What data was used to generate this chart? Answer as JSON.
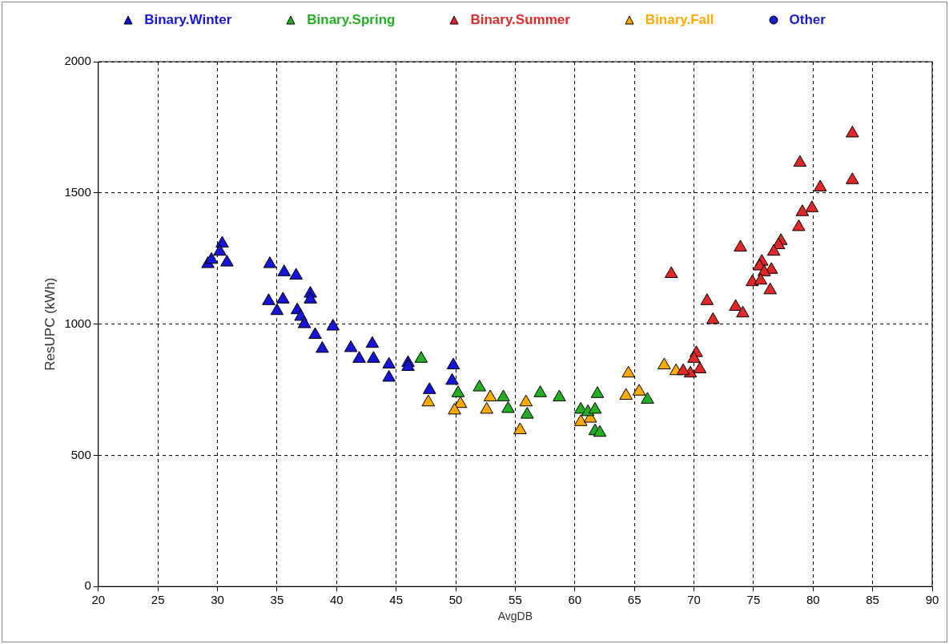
{
  "chart_data": {
    "type": "scatter",
    "xlabel": "AvgDB",
    "ylabel": "ResUPC (kWh)",
    "xlim": [
      20,
      90
    ],
    "xticks": [
      20,
      25,
      30,
      35,
      40,
      45,
      50,
      55,
      60,
      65,
      70,
      75,
      80,
      85,
      90
    ],
    "ylim": [
      0,
      2000
    ],
    "yticks": [
      0,
      500,
      1000,
      1500,
      2000
    ],
    "grid": true,
    "legend": "top",
    "marker": "triangle",
    "series": [
      {
        "name": "Binary.Winter",
        "color": "#1515d8",
        "x": [
          30.4,
          29.2,
          29.5,
          30.8,
          30.2,
          34.4,
          35.6,
          36.6,
          37.8,
          37.8,
          34.3,
          35.5,
          35.0,
          36.7,
          37.0,
          37.3,
          38.2,
          38.8,
          39.7,
          41.2,
          41.9,
          43.0,
          43.1,
          44.4,
          44.4,
          46.0,
          46.0,
          47.8,
          49.8,
          49.7
        ],
        "values": [
          1307,
          1229,
          1245,
          1235,
          1276,
          1229,
          1198,
          1185,
          1116,
          1094,
          1088,
          1094,
          1050,
          1053,
          1028,
          1000,
          959,
          906,
          991,
          909,
          868,
          925,
          868,
          846,
          796,
          852,
          837,
          749,
          843,
          784
        ]
      },
      {
        "name": "Binary.Spring",
        "color": "#22b022",
        "x": [
          47.1,
          50.2,
          52.0,
          54.0,
          54.4,
          56.0,
          57.1,
          58.7,
          60.5,
          61.1,
          61.7,
          61.9,
          61.7,
          62.1,
          66.1
        ],
        "values": [
          868,
          737,
          759,
          721,
          677,
          655,
          737,
          721,
          674,
          665,
          674,
          734,
          592,
          586,
          712
        ]
      },
      {
        "name": "Binary.Summer",
        "color": "#e02828",
        "x": [
          83.3,
          83.3,
          78.9,
          80.6,
          79.9,
          79.1,
          78.8,
          77.3,
          77.1,
          76.7,
          73.9,
          75.7,
          75.5,
          76.5,
          75.9,
          74.9,
          75.6,
          76.4,
          68.1,
          71.1,
          71.6,
          73.5,
          74.1,
          70.2,
          70.0,
          70.5,
          69.7,
          69.1
        ],
        "values": [
          1727,
          1549,
          1615,
          1521,
          1442,
          1427,
          1370,
          1317,
          1301,
          1276,
          1292,
          1238,
          1220,
          1207,
          1198,
          1160,
          1166,
          1129,
          1191,
          1088,
          1016,
          1066,
          1041,
          890,
          868,
          828,
          812,
          821
        ]
      },
      {
        "name": "Binary.Fall",
        "color": "#ffaa00",
        "x": [
          47.7,
          50.4,
          49.9,
          52.9,
          52.6,
          55.9,
          55.4,
          60.5,
          61.3,
          64.5,
          64.3,
          65.4,
          67.5,
          68.5
        ],
        "values": [
          702,
          696,
          671,
          721,
          674,
          702,
          596,
          627,
          640,
          812,
          727,
          743,
          843,
          821
        ]
      },
      {
        "name": "Other",
        "color": "#1a1ad0",
        "marker": "circle"
      }
    ]
  }
}
